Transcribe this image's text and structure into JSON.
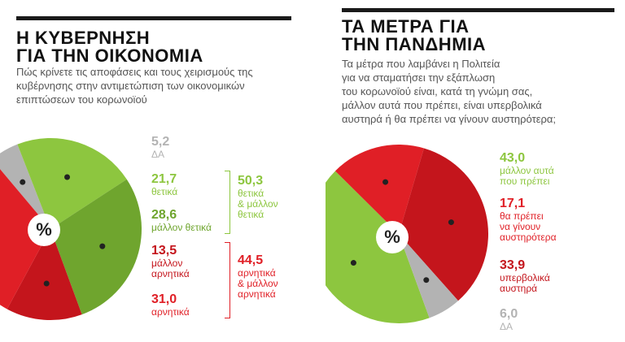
{
  "left": {
    "title_line1": "Η ΚΥΒΕΡΝΗΣΗ",
    "title_line2": "ΓΙΑ ΤΗΝ ΟΙΚΟΝΟΜΙΑ",
    "subtitle_lines": [
      "Πώς κρίνετε τις αποφάσεις και τους χειρισμούς της",
      "κυβέρνησης στην αντιμετώπιση των οικονομικών",
      "επιπτώσεων του κορωνοϊού"
    ],
    "percent_symbol": "%",
    "items": [
      {
        "value": "5,2",
        "text1": "ΔΑ",
        "text2": ""
      },
      {
        "value": "21,7",
        "text1": "θετικά",
        "text2": ""
      },
      {
        "value": "28,6",
        "text1": "μάλλον θετικά",
        "text2": ""
      },
      {
        "value": "13,5",
        "text1": "μάλλον",
        "text2": "αρνητικά"
      },
      {
        "value": "31,0",
        "text1": "αρνητικά",
        "text2": ""
      }
    ],
    "groups": [
      {
        "value": "50,3",
        "lines": [
          "θετικά",
          "& μάλλον",
          "θετικά"
        ]
      },
      {
        "value": "44,5",
        "lines": [
          "αρνητικά",
          "& μάλλον",
          "αρνητικά"
        ]
      }
    ]
  },
  "right": {
    "title_line1": "ΤΑ ΜΕΤΡΑ ΓΙΑ",
    "title_line2": "ΤΗΝ ΠΑΝΔΗΜΙΑ",
    "subtitle_lines": [
      "Τα μέτρα που λαμβάνει η Πολιτεία",
      "για να σταματήσει την εξάπλωση",
      "του κορωνοϊού είναι, κατά τη γνώμη σας,",
      "μάλλον αυτά που πρέπει, είναι υπερβολικά",
      "αυστηρά ή θα πρέπει να γίνουν αυστηρότερα;"
    ],
    "percent_symbol": "%",
    "items": [
      {
        "value": "43,0",
        "text1": "μάλλον αυτά",
        "text2": "που πρέπει",
        "text3": ""
      },
      {
        "value": "17,1",
        "text1": "θα πρέπει",
        "text2": "να γίνουν",
        "text3": "αυστηρότερα"
      },
      {
        "value": "33,9",
        "text1": "υπερβολικά",
        "text2": "αυστηρά",
        "text3": ""
      },
      {
        "value": "6,0",
        "text1": "ΔΑ",
        "text2": "",
        "text3": ""
      }
    ]
  },
  "colors": {
    "grey": "#b3b3b3",
    "light_green": "#8dc63f",
    "dark_green": "#6fa52e",
    "red": "#e01f26",
    "dark_red": "#c4151c"
  },
  "chart_data": [
    {
      "type": "pie",
      "title": "Η ΚΥΒΕΡΝΗΣΗ ΓΙΑ ΤΗΝ ΟΙΚΟΝΟΜΙΑ",
      "categories": [
        "ΔΑ",
        "θετικά",
        "μάλλον θετικά",
        "μάλλον αρνητικά",
        "αρνητικά"
      ],
      "values": [
        5.2,
        21.7,
        28.6,
        13.5,
        31.0
      ],
      "colors": [
        "#b3b3b3",
        "#8dc63f",
        "#6fa52e",
        "#c4151c",
        "#e01f26"
      ],
      "groups": [
        {
          "label": "θετικά & μάλλον θετικά",
          "value": 50.3
        },
        {
          "label": "αρνητικά & μάλλον αρνητικά",
          "value": 44.5
        }
      ]
    },
    {
      "type": "pie",
      "title": "ΤΑ ΜΕΤΡΑ ΓΙΑ ΤΗΝ ΠΑΝΔΗΜΙΑ",
      "categories": [
        "μάλλον αυτά που πρέπει",
        "θα πρέπει να γίνουν αυστηρότερα",
        "υπερβολικά αυστηρά",
        "ΔΑ"
      ],
      "values": [
        43.0,
        17.1,
        33.9,
        6.0
      ],
      "colors": [
        "#8dc63f",
        "#e01f26",
        "#c4151c",
        "#b3b3b3"
      ]
    }
  ]
}
